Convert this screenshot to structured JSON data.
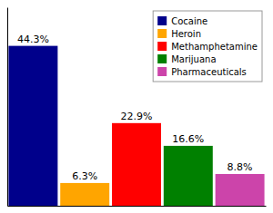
{
  "chart_data": {
    "type": "bar",
    "categories": [
      "Cocaine",
      "Heroin",
      "Methamphetamine",
      "Marijuana",
      "Pharmaceuticals"
    ],
    "values": [
      44.3,
      6.3,
      22.9,
      16.6,
      8.8
    ],
    "value_labels": [
      "44.3%",
      "6.3%",
      "22.9%",
      "16.6%",
      "8.8%"
    ],
    "colors": [
      "#00008B",
      "#FFA500",
      "#FF0000",
      "#008000",
      "#CC44AA"
    ],
    "ylim": [
      0,
      55
    ],
    "data_labels": true,
    "tick_labels": false,
    "legend": "upper right"
  }
}
